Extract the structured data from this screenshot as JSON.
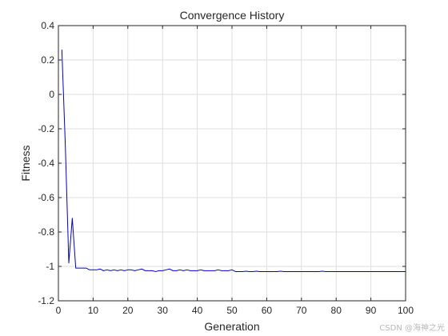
{
  "chart_data": {
    "type": "line",
    "title": "Convergence History",
    "xlabel": "Generation",
    "ylabel": "Fitness",
    "xlim": [
      0,
      100
    ],
    "ylim": [
      -1.2,
      0.4
    ],
    "xticks": [
      0,
      10,
      20,
      30,
      40,
      50,
      60,
      70,
      80,
      90,
      100
    ],
    "yticks": [
      0.4,
      0.2,
      0,
      -0.2,
      -0.4,
      -0.6,
      -0.8,
      -1,
      -1.2
    ],
    "xtick_labels": [
      "0",
      "10",
      "20",
      "30",
      "40",
      "50",
      "60",
      "70",
      "80",
      "90",
      "100"
    ],
    "ytick_labels": [
      "0.4",
      "0.2",
      "0",
      "-0.2",
      "-0.4",
      "-0.6",
      "-0.8",
      "-1",
      "-1.2"
    ],
    "grid": true,
    "series": [
      {
        "color": "#0000cd",
        "x": [
          1,
          2,
          3,
          4,
          5,
          6,
          7,
          8,
          9,
          10,
          11,
          12,
          13,
          14,
          15,
          16,
          17,
          18,
          19,
          20,
          21,
          22,
          23,
          24,
          25,
          26,
          27,
          28,
          29,
          30,
          31,
          32,
          33,
          34,
          35,
          36,
          37,
          38,
          39,
          40,
          41,
          42,
          43,
          44,
          45,
          46,
          47,
          48,
          49,
          50,
          51,
          52,
          53,
          54,
          55,
          56,
          57,
          58,
          59,
          60,
          61,
          62,
          63,
          64,
          65,
          66,
          67,
          68,
          69,
          70,
          71,
          72,
          73,
          74,
          75,
          76,
          77,
          78,
          79,
          80,
          81,
          82,
          83,
          84,
          85,
          86,
          87,
          88,
          89,
          90,
          91,
          92,
          93,
          94,
          95,
          96,
          97,
          98,
          99,
          100
        ],
        "y": [
          0.26,
          -0.3,
          -0.98,
          -0.72,
          -1.01,
          -1.01,
          -1.01,
          -1.01,
          -1.02,
          -1.02,
          -1.02,
          -1.015,
          -1.025,
          -1.02,
          -1.025,
          -1.02,
          -1.025,
          -1.02,
          -1.025,
          -1.02,
          -1.02,
          -1.025,
          -1.02,
          -1.015,
          -1.025,
          -1.025,
          -1.025,
          -1.03,
          -1.025,
          -1.025,
          -1.02,
          -1.015,
          -1.025,
          -1.025,
          -1.02,
          -1.025,
          -1.02,
          -1.025,
          -1.025,
          -1.025,
          -1.02,
          -1.025,
          -1.025,
          -1.025,
          -1.025,
          -1.02,
          -1.025,
          -1.025,
          -1.025,
          -1.02,
          -1.03,
          -1.03,
          -1.03,
          -1.028,
          -1.03,
          -1.03,
          -1.028,
          -1.03,
          -1.03,
          -1.03,
          -1.03,
          -1.03,
          -1.03,
          -1.028,
          -1.03,
          -1.03,
          -1.03,
          -1.03,
          -1.03,
          -1.03,
          -1.03,
          -1.03,
          -1.03,
          -1.03,
          -1.03,
          -1.028,
          -1.03,
          -1.03,
          -1.03,
          -1.03,
          -1.03,
          -1.03,
          -1.03,
          -1.03,
          -1.03,
          -1.03,
          -1.03,
          -1.03,
          -1.03,
          -1.03,
          -1.03,
          -1.03,
          -1.03,
          -1.03,
          -1.03,
          -1.03,
          -1.03,
          -1.03,
          -1.03,
          -1.03
        ]
      }
    ]
  },
  "watermark": "CSDN @海神之光"
}
